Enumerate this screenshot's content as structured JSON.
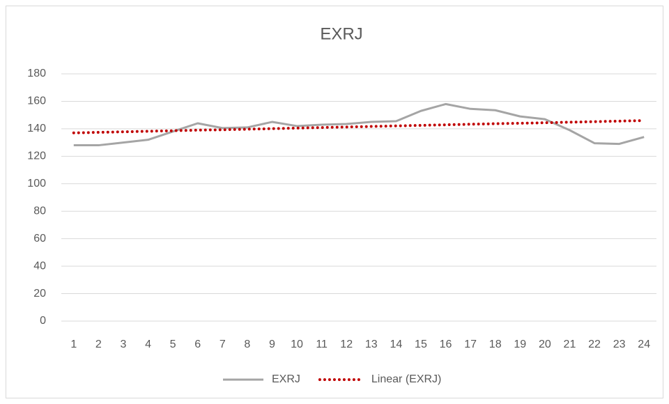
{
  "chart_data": {
    "type": "line",
    "title": "EXRJ",
    "categories": [
      "1",
      "2",
      "3",
      "4",
      "5",
      "6",
      "7",
      "8",
      "9",
      "10",
      "11",
      "12",
      "13",
      "14",
      "15",
      "16",
      "17",
      "18",
      "19",
      "20",
      "21",
      "22",
      "23",
      "24"
    ],
    "series": [
      {
        "name": "EXRJ",
        "color": "#a5a5a5",
        "style": "solid",
        "values": [
          128,
          128,
          130,
          132,
          138,
          144,
          140.5,
          141,
          145,
          142,
          143,
          143.5,
          145,
          145.5,
          153,
          158,
          154.5,
          153.5,
          149,
          147,
          139,
          129.5,
          129,
          134
        ]
      },
      {
        "name": "Linear (EXRJ)",
        "color": "#c00000",
        "style": "dotted",
        "values": [
          137.0,
          137.4,
          137.8,
          138.2,
          138.6,
          139.0,
          139.3,
          139.7,
          140.1,
          140.5,
          140.9,
          141.3,
          141.7,
          142.1,
          142.5,
          142.9,
          143.3,
          143.7,
          144.0,
          144.4,
          144.8,
          145.2,
          145.6,
          146.0
        ]
      }
    ],
    "ylim": [
      0,
      180
    ],
    "yticks": [
      0,
      20,
      40,
      60,
      80,
      100,
      120,
      140,
      160,
      180
    ],
    "grid": true,
    "legend": "bottom"
  }
}
